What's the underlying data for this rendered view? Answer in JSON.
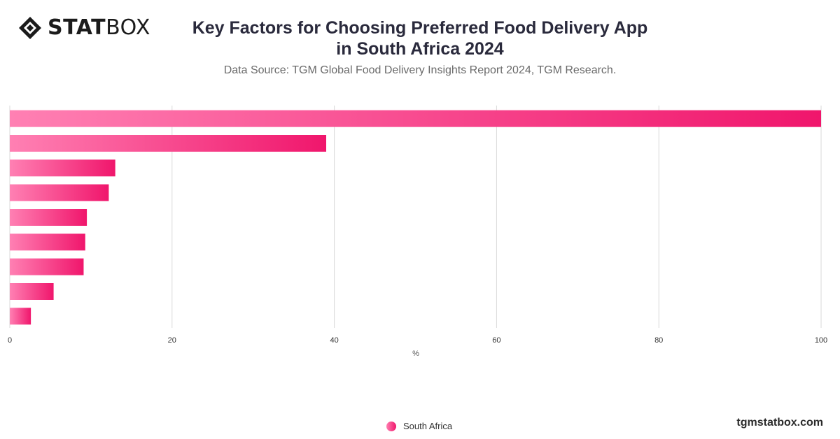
{
  "brand": {
    "logo_bold": "STAT",
    "logo_light": "BOX",
    "logo_icon": "diamond-logo-icon",
    "site": "tgmstatbox.com"
  },
  "header": {
    "title_line1": "Key Factors for Choosing Preferred Food Delivery App",
    "title_line2": "in South Africa 2024",
    "source": "Data Source: TGM Global Food Delivery Insights Report 2024, TGM Research."
  },
  "legend": {
    "label": "South Africa",
    "icon": "legend-dot-icon"
  },
  "colors": {
    "bar_start": "#ff80b3",
    "bar_end": "#f0166c",
    "grid": "#d9d9d9",
    "axis_text": "#333333"
  },
  "chart_data": {
    "type": "bar",
    "orientation": "horizontal",
    "categories": [
      "",
      "",
      "",
      "",
      "",
      "",
      "",
      "",
      ""
    ],
    "series": [
      {
        "name": "South Africa",
        "values": [
          100,
          39,
          13,
          12.2,
          9.5,
          9.3,
          9.1,
          5.4,
          2.6
        ]
      }
    ],
    "xlabel": "%",
    "ylabel": "",
    "xlim": [
      0,
      100
    ],
    "xticks": [
      0,
      20,
      40,
      60,
      80,
      100
    ],
    "grid": true,
    "legend_position": "bottom-center"
  }
}
